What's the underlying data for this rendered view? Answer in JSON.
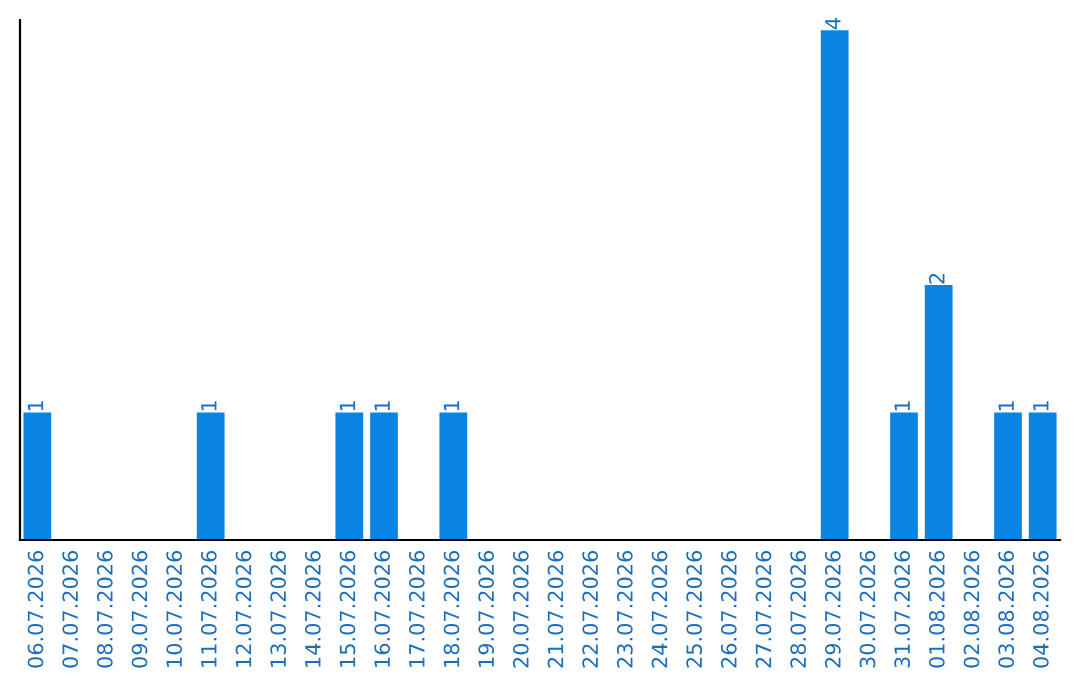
{
  "chart_data": {
    "type": "bar",
    "categories": [
      "06.07.2026",
      "07.07.2026",
      "08.07.2026",
      "09.07.2026",
      "10.07.2026",
      "11.07.2026",
      "12.07.2026",
      "13.07.2026",
      "14.07.2026",
      "15.07.2026",
      "16.07.2026",
      "17.07.2026",
      "18.07.2026",
      "19.07.2026",
      "20.07.2026",
      "21.07.2026",
      "22.07.2026",
      "23.07.2026",
      "24.07.2026",
      "25.07.2026",
      "26.07.2026",
      "27.07.2026",
      "28.07.2026",
      "29.07.2026",
      "30.07.2026",
      "31.07.2026",
      "01.08.2026",
      "02.08.2026",
      "03.08.2026",
      "04.08.2026"
    ],
    "values": [
      1,
      0,
      0,
      0,
      0,
      1,
      0,
      0,
      0,
      1,
      1,
      0,
      1,
      0,
      0,
      0,
      0,
      0,
      0,
      0,
      0,
      0,
      0,
      4,
      0,
      1,
      2,
      0,
      1,
      1
    ],
    "value_labels": [
      "1",
      null,
      null,
      null,
      null,
      "1",
      null,
      null,
      null,
      "1",
      "1",
      null,
      "1",
      null,
      null,
      null,
      null,
      null,
      null,
      null,
      null,
      null,
      null,
      "4",
      null,
      "1",
      "2",
      null,
      "1",
      "1"
    ],
    "color": "#0a84e3",
    "tick_labels": "x",
    "grid": false,
    "legend": false
  }
}
